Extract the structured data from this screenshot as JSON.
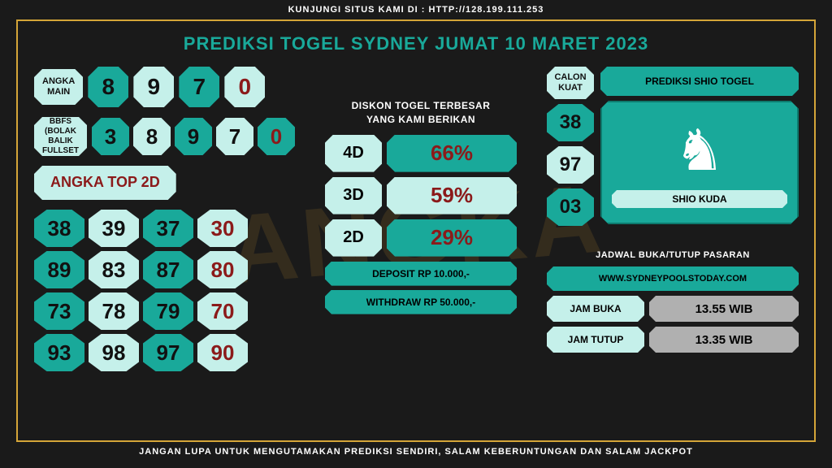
{
  "top_text": "KUNJUNGI SITUS KAMI DI : HTTP://128.199.111.253",
  "bottom_text": "JANGAN LUPA UNTUK MENGUTAMAKAN PREDIKSI SENDIRI, SALAM KEBERUNTUNGAN DAN SALAM JACKPOT",
  "title": "PREDIKSI TOGEL SYDNEY JUMAT 10 MARET 2023",
  "watermark": "ANGKA",
  "angka_main": {
    "label": "ANGKA\nMAIN",
    "nums": [
      "8",
      "9",
      "7",
      "0"
    ]
  },
  "angka_bbfs": {
    "label": "ANGKA BBFS\n(BOLAK BALIK\nFULLSET )",
    "nums": [
      "3",
      "8",
      "9",
      "7",
      "0"
    ]
  },
  "top2d": {
    "label": "ANGKA TOP 2D",
    "nums": [
      "38",
      "39",
      "37",
      "30",
      "89",
      "83",
      "87",
      "80",
      "73",
      "78",
      "79",
      "70",
      "93",
      "98",
      "97",
      "90"
    ]
  },
  "diskon": {
    "header": "DISKON TOGEL TERBESAR\nYANG KAMI BERIKAN",
    "rows": [
      {
        "label": "4D",
        "val": "66%",
        "bg": "#19a99a"
      },
      {
        "label": "3D",
        "val": "59%",
        "bg": "#c5f0ea"
      },
      {
        "label": "2D",
        "val": "29%",
        "bg": "#19a99a"
      }
    ],
    "deposit": "DEPOSIT RP 10.000,-",
    "withdraw": "WITHDRAW RP 50.000,-"
  },
  "calon": {
    "label": "CALON\nKUAT",
    "nums": [
      "38",
      "97",
      "03"
    ]
  },
  "shio": {
    "title": "PREDIKSI SHIO TOGEL",
    "name": "SHIO KUDA"
  },
  "sched": {
    "title": "JADWAL BUKA/TUTUP PASARAN",
    "site": "WWW.SYDNEYPOOLSTODAY.COM",
    "open_label": "JAM BUKA",
    "open_val": "13.55 WIB",
    "close_label": "JAM TUTUP",
    "close_val": "13.35 WIB"
  },
  "colors": {
    "teal": "#19a99a",
    "light": "#c5f0ea",
    "red": "#8b1a1a"
  }
}
